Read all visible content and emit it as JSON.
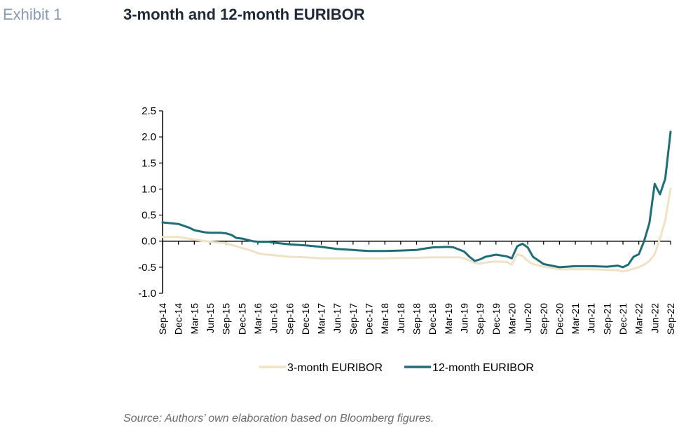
{
  "header": {
    "exhibit_label": "Exhibit 1",
    "title": "3-month and 12-month EURIBOR"
  },
  "footer": {
    "source": "Source: Authors’ own elaboration based on Bloomberg figures."
  },
  "chart_data": {
    "type": "line",
    "title": "3-month and 12-month EURIBOR",
    "xlabel": "",
    "ylabel": "",
    "ylim": [
      -1.0,
      2.5
    ],
    "y_ticks": [
      "2.5",
      "2.0",
      "1.5",
      "1.0",
      "0.5",
      "0.0",
      "-0.5",
      "-1.0"
    ],
    "x_tick_labels": [
      "Sep-14",
      "Dec-14",
      "Mar-15",
      "Jun-15",
      "Sep-15",
      "Dec-15",
      "Mar-16",
      "Jun-16",
      "Sep-16",
      "Dec-16",
      "Mar-17",
      "Jun-17",
      "Sep-17",
      "Dec-17",
      "Mar-18",
      "Jun-18",
      "Sep-18",
      "Dec-18",
      "Mar-19",
      "Jun-19",
      "Sep-19",
      "Dec-19",
      "Mar-20",
      "Jun-20",
      "Sep-20",
      "Dec-20",
      "Mar-21",
      "Jun-21",
      "Sep-21",
      "Dec-21",
      "Mar-22",
      "Jun-22",
      "Sep-22"
    ],
    "grid": false,
    "legend_position": "bottom",
    "series": [
      {
        "name": "3-month EURIBOR",
        "color": "#f0e2c4",
        "points": [
          [
            "Sep-14",
            0.08
          ],
          [
            "Dec-14",
            0.08
          ],
          [
            "Mar-15",
            0.03
          ],
          [
            "Jun-15",
            -0.01
          ],
          [
            "Sep-15",
            -0.04
          ],
          [
            "Oct-15",
            -0.07
          ],
          [
            "Dec-15",
            -0.13
          ],
          [
            "Feb-16",
            -0.19
          ],
          [
            "Mar-16",
            -0.23
          ],
          [
            "Apr-16",
            -0.25
          ],
          [
            "Jun-16",
            -0.27
          ],
          [
            "Sep-16",
            -0.3
          ],
          [
            "Dec-16",
            -0.31
          ],
          [
            "Mar-17",
            -0.33
          ],
          [
            "Jun-17",
            -0.33
          ],
          [
            "Sep-17",
            -0.33
          ],
          [
            "Dec-17",
            -0.33
          ],
          [
            "Mar-18",
            -0.33
          ],
          [
            "Jun-18",
            -0.32
          ],
          [
            "Sep-18",
            -0.32
          ],
          [
            "Dec-18",
            -0.31
          ],
          [
            "Mar-19",
            -0.31
          ],
          [
            "May-19",
            -0.31
          ],
          [
            "Jun-19",
            -0.33
          ],
          [
            "Jul-19",
            -0.37
          ],
          [
            "Aug-19",
            -0.42
          ],
          [
            "Sep-19",
            -0.43
          ],
          [
            "Oct-19",
            -0.41
          ],
          [
            "Nov-19",
            -0.4
          ],
          [
            "Dec-19",
            -0.39
          ],
          [
            "Feb-20",
            -0.4
          ],
          [
            "Mar-20",
            -0.45
          ],
          [
            "Apr-20",
            -0.25
          ],
          [
            "May-20",
            -0.28
          ],
          [
            "Jun-20",
            -0.38
          ],
          [
            "Jul-20",
            -0.44
          ],
          [
            "Sep-20",
            -0.49
          ],
          [
            "Dec-20",
            -0.54
          ],
          [
            "Mar-21",
            -0.54
          ],
          [
            "Jun-21",
            -0.54
          ],
          [
            "Sep-21",
            -0.55
          ],
          [
            "Nov-21",
            -0.56
          ],
          [
            "Dec-21",
            -0.58
          ],
          [
            "Jan-22",
            -0.56
          ],
          [
            "Mar-22",
            -0.5
          ],
          [
            "Apr-22",
            -0.45
          ],
          [
            "May-22",
            -0.38
          ],
          [
            "Jun-22",
            -0.25
          ],
          [
            "Jul-22",
            0.05
          ],
          [
            "Aug-22",
            0.4
          ],
          [
            "Sep-22",
            1.01
          ]
        ]
      },
      {
        "name": "12-month EURIBOR",
        "color": "#1e6e78",
        "points": [
          [
            "Sep-14",
            0.36
          ],
          [
            "Nov-14",
            0.34
          ],
          [
            "Dec-14",
            0.33
          ],
          [
            "Feb-15",
            0.26
          ],
          [
            "Mar-15",
            0.21
          ],
          [
            "May-15",
            0.17
          ],
          [
            "Jun-15",
            0.16
          ],
          [
            "Aug-15",
            0.16
          ],
          [
            "Sep-15",
            0.15
          ],
          [
            "Oct-15",
            0.12
          ],
          [
            "Nov-15",
            0.06
          ],
          [
            "Dec-15",
            0.05
          ],
          [
            "Feb-16",
            0.0
          ],
          [
            "Mar-16",
            -0.01
          ],
          [
            "May-16",
            -0.01
          ],
          [
            "Jun-16",
            -0.03
          ],
          [
            "Sep-16",
            -0.06
          ],
          [
            "Dec-16",
            -0.08
          ],
          [
            "Mar-17",
            -0.11
          ],
          [
            "Jun-17",
            -0.15
          ],
          [
            "Sep-17",
            -0.17
          ],
          [
            "Dec-17",
            -0.19
          ],
          [
            "Mar-18",
            -0.19
          ],
          [
            "Jun-18",
            -0.18
          ],
          [
            "Sep-18",
            -0.17
          ],
          [
            "Oct-18",
            -0.15
          ],
          [
            "Dec-18",
            -0.12
          ],
          [
            "Mar-19",
            -0.11
          ],
          [
            "Apr-19",
            -0.12
          ],
          [
            "Jun-19",
            -0.2
          ],
          [
            "Jul-19",
            -0.3
          ],
          [
            "Aug-19",
            -0.38
          ],
          [
            "Sep-19",
            -0.35
          ],
          [
            "Oct-19",
            -0.3
          ],
          [
            "Dec-19",
            -0.26
          ],
          [
            "Feb-20",
            -0.29
          ],
          [
            "Mar-20",
            -0.33
          ],
          [
            "Apr-20",
            -0.1
          ],
          [
            "May-20",
            -0.05
          ],
          [
            "Jun-20",
            -0.12
          ],
          [
            "Jul-20",
            -0.3
          ],
          [
            "Sep-20",
            -0.44
          ],
          [
            "Dec-20",
            -0.5
          ],
          [
            "Mar-21",
            -0.48
          ],
          [
            "Jun-21",
            -0.48
          ],
          [
            "Sep-21",
            -0.49
          ],
          [
            "Nov-21",
            -0.47
          ],
          [
            "Dec-21",
            -0.5
          ],
          [
            "Jan-22",
            -0.45
          ],
          [
            "Feb-22",
            -0.3
          ],
          [
            "Mar-22",
            -0.25
          ],
          [
            "Apr-22",
            0.0
          ],
          [
            "May-22",
            0.35
          ],
          [
            "Jun-22",
            1.1
          ],
          [
            "Jul-22",
            0.9
          ],
          [
            "Aug-22",
            1.2
          ],
          [
            "Sep-22",
            2.1
          ]
        ]
      }
    ]
  }
}
